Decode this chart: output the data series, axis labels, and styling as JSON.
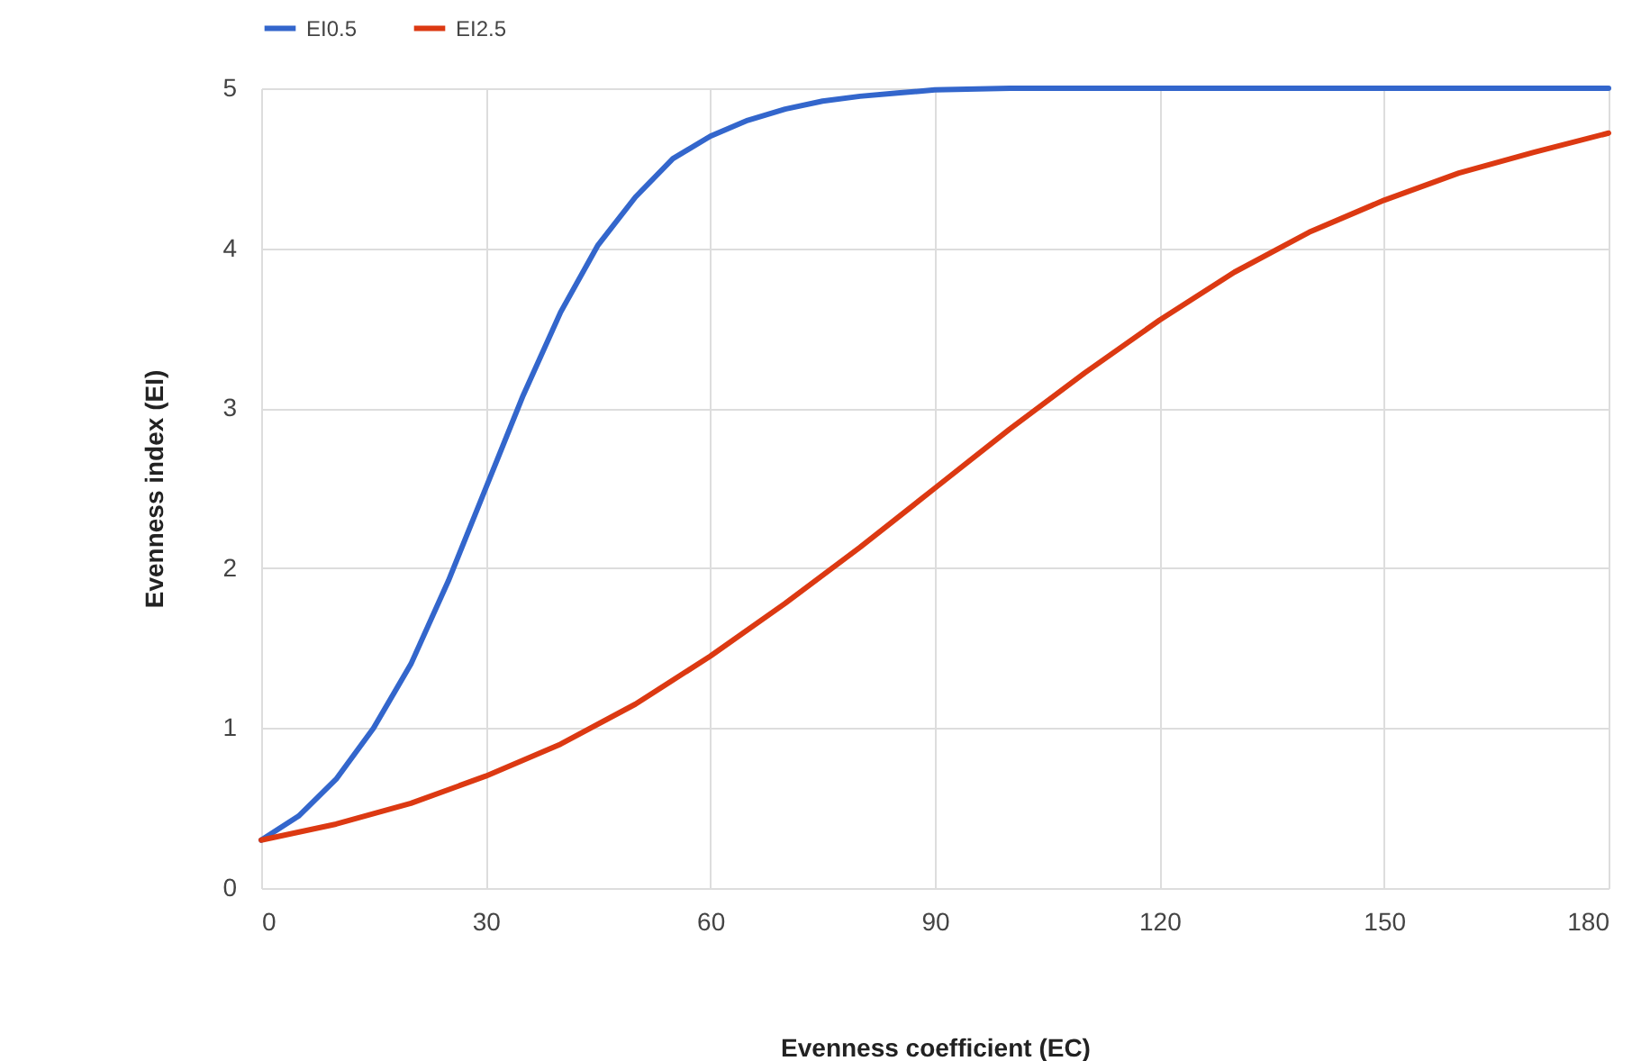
{
  "chart_data": {
    "type": "line",
    "xlabel": "Evenness coefficient (EC)",
    "ylabel": "Evenness index (EI)",
    "xlim": [
      0,
      180
    ],
    "xticks": [
      0,
      30,
      60,
      90,
      120,
      150,
      180
    ],
    "ylim": [
      0,
      5
    ],
    "yticks": [
      0,
      1,
      2,
      3,
      4,
      5
    ],
    "grid": true,
    "legend": "top left",
    "marker": "none",
    "line_style": "solid",
    "series": [
      {
        "name": "EI0.5",
        "color": "#3366cc",
        "x": [
          0,
          5,
          10,
          15,
          20,
          25,
          30,
          35,
          40,
          45,
          50,
          55,
          60,
          65,
          70,
          75,
          80,
          85,
          90,
          100,
          110,
          120,
          150,
          180
        ],
        "values": [
          0.3,
          0.45,
          0.68,
          1.0,
          1.4,
          1.92,
          2.5,
          3.08,
          3.6,
          4.02,
          4.32,
          4.56,
          4.7,
          4.8,
          4.87,
          4.92,
          4.95,
          4.97,
          4.99,
          5,
          5,
          5,
          5,
          5
        ]
      },
      {
        "name": "EI2.5",
        "color": "#dc3912",
        "x": [
          0,
          10,
          20,
          30,
          40,
          50,
          60,
          70,
          80,
          90,
          100,
          110,
          120,
          130,
          140,
          150,
          160,
          170,
          180
        ],
        "values": [
          0.3,
          0.4,
          0.53,
          0.7,
          0.9,
          1.15,
          1.45,
          1.78,
          2.13,
          2.5,
          2.87,
          3.22,
          3.55,
          3.85,
          4.1,
          4.3,
          4.47,
          4.6,
          4.72
        ]
      }
    ]
  }
}
